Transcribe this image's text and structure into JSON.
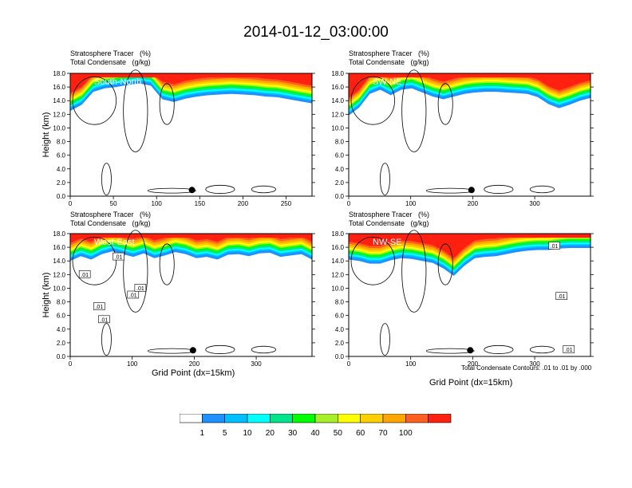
{
  "figure_title": "2014-01-12_03:00:00",
  "header_line1": "Stratosphere Tracer   (%)",
  "header_line2": "Total Condensate   (g/kg)",
  "note": "Total Condensate Contours: .01 to .01 by .000",
  "colors": {
    "levels": [
      "#ffffff",
      "#1e90ff",
      "#00bfff",
      "#00ffff",
      "#00e58c",
      "#00ff00",
      "#a6f02a",
      "#ffff00",
      "#ffd000",
      "#ffa500",
      "#ff6020",
      "#ff2010"
    ],
    "colorbar_labels": [
      "1",
      "5",
      "10",
      "20",
      "30",
      "40",
      "50",
      "60",
      "70",
      "100"
    ]
  },
  "chart_data": [
    {
      "type": "heatmap",
      "panel_label": "South-North",
      "ylabel": "Height (km)",
      "xlabel": "",
      "xlim": [
        0,
        280
      ],
      "ylim": [
        0,
        18
      ],
      "xticks": [
        0,
        50,
        100,
        150,
        200,
        250
      ],
      "yticks": [
        "0.0",
        "2.0",
        "4.0",
        "6.0",
        "8.0",
        "10.0",
        "12.0",
        "14.0",
        "16.0",
        "18.0"
      ],
      "marker_x": 141,
      "tracer_base_km": [
        12.5,
        13.4,
        15.3,
        15.8,
        16.0,
        16.3,
        16.5,
        16.2,
        14.2,
        13.8,
        14.3,
        14.6,
        14.8,
        14.9,
        15.0,
        14.9,
        14.8,
        14.6,
        14.5,
        14.2,
        13.9,
        13.6
      ]
    },
    {
      "type": "heatmap",
      "panel_label": "SW-NE",
      "ylabel": "",
      "xlabel": "",
      "xlim": [
        0,
        390
      ],
      "ylim": [
        0,
        18
      ],
      "xticks": [
        0,
        100,
        200,
        300
      ],
      "yticks": [
        "0.0",
        "2.0",
        "4.0",
        "6.0",
        "8.0",
        "10.0",
        "12.0",
        "14.0",
        "16.0",
        "18.0"
      ],
      "marker_x": 198,
      "tracer_base_km": [
        11.8,
        13.0,
        15.0,
        15.6,
        14.8,
        15.6,
        15.8,
        15.2,
        14.6,
        14.2,
        14.6,
        15.0,
        15.2,
        15.3,
        15.3,
        15.2,
        15.1,
        15.0,
        14.5,
        13.5,
        12.9,
        13.4,
        14.0,
        14.4
      ]
    },
    {
      "type": "heatmap",
      "panel_label": "West-East",
      "ylabel": "Height (km)",
      "xlabel": "Grid Point (dx=15km)",
      "xlim": [
        0,
        390
      ],
      "ylim": [
        0,
        18
      ],
      "xticks": [
        0,
        100,
        200,
        300
      ],
      "yticks": [
        "0.0",
        "2.0",
        "4.0",
        "6.0",
        "8.0",
        "10.0",
        "12.0",
        "14.0",
        "16.0",
        "18.0"
      ],
      "marker_x": 198,
      "contour_labels": [
        ".01",
        ".01",
        ".01",
        ".01",
        ".01",
        ".01"
      ],
      "tracer_base_km": [
        14.0,
        14.7,
        14.2,
        15.0,
        15.4,
        15.0,
        14.6,
        15.1,
        14.4,
        14.8,
        15.3,
        15.0,
        14.4,
        14.6,
        14.2,
        14.9,
        15.0,
        14.7,
        15.1,
        15.2,
        14.6,
        14.8,
        15.0,
        14.2
      ]
    },
    {
      "type": "heatmap",
      "panel_label": "NW-SE",
      "ylabel": "",
      "xlabel": "Grid Point (dx=15km)",
      "xlim": [
        0,
        390
      ],
      "ylim": [
        0,
        18
      ],
      "xticks": [
        0,
        100,
        200,
        300
      ],
      "yticks": [
        "0.0",
        "2.0",
        "4.0",
        "6.0",
        "8.0",
        "10.0",
        "12.0",
        "14.0",
        "16.0",
        "18.0"
      ],
      "marker_x": 196,
      "contour_labels": [
        ".01",
        ".01",
        ".01"
      ],
      "tracer_base_km": [
        14.2,
        14.0,
        13.6,
        13.6,
        14.1,
        14.4,
        14.3,
        14.0,
        13.7,
        12.9,
        11.8,
        13.3,
        14.4,
        14.6,
        14.7,
        15.0,
        15.3,
        15.5,
        15.6,
        15.6,
        15.8,
        15.9,
        15.9,
        15.9
      ]
    }
  ]
}
